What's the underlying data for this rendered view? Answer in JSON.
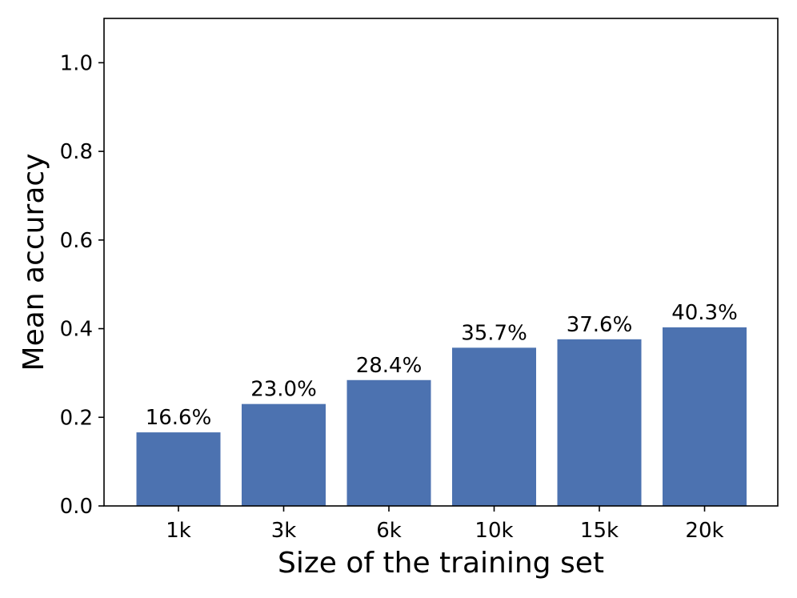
{
  "chart_data": {
    "type": "bar",
    "title": "",
    "xlabel": "Size of the training set",
    "ylabel": "Mean accuracy",
    "categories": [
      "1k",
      "3k",
      "6k",
      "10k",
      "15k",
      "20k"
    ],
    "values": [
      0.166,
      0.23,
      0.284,
      0.357,
      0.376,
      0.403
    ],
    "data_labels": [
      "16.6%",
      "23.0%",
      "28.4%",
      "35.7%",
      "37.6%",
      "40.3%"
    ],
    "ylim": [
      0,
      1.1
    ],
    "yticks": [
      0.0,
      0.2,
      0.4,
      0.6,
      0.8,
      1.0
    ],
    "ytick_labels": [
      "0.0",
      "0.2",
      "0.4",
      "0.6",
      "0.8",
      "1.0"
    ],
    "grid": false,
    "bar_color": "#4c72b0"
  }
}
